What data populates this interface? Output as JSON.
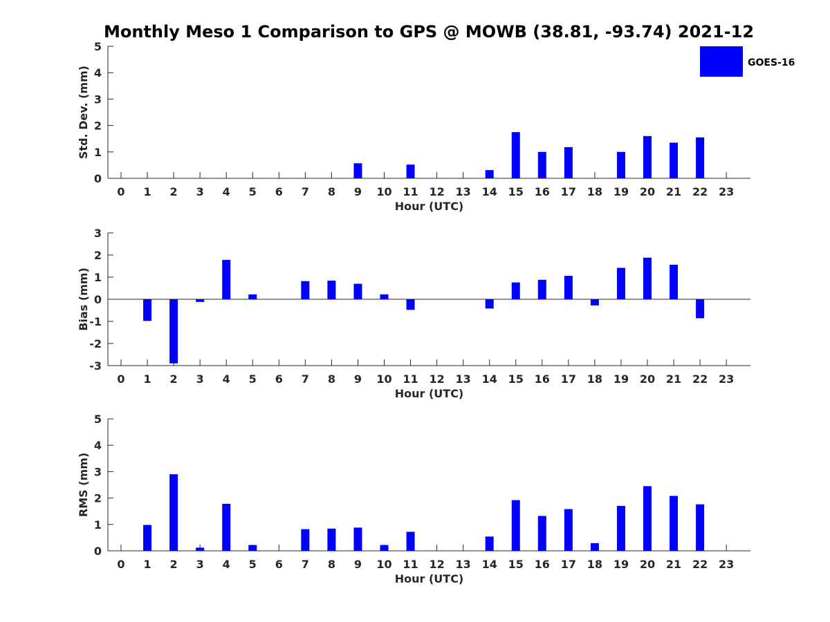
{
  "title": "Monthly Meso 1 Comparison to GPS @ MOWB (38.81, -93.74) 2021-12",
  "legend": {
    "label": "GOES-16",
    "color": "#0000ff"
  },
  "chart_data": [
    {
      "type": "bar",
      "xlabel": "Hour (UTC)",
      "ylabel": "Std. Dev. (mm)",
      "ylim": [
        0,
        5
      ],
      "yticks": [
        "0",
        "1",
        "2",
        "3",
        "4",
        "5"
      ],
      "categories": [
        "0",
        "1",
        "2",
        "3",
        "4",
        "5",
        "6",
        "7",
        "8",
        "9",
        "10",
        "11",
        "12",
        "13",
        "14",
        "15",
        "16",
        "17",
        "18",
        "19",
        "20",
        "21",
        "22",
        "23"
      ],
      "series": [
        {
          "name": "GOES-16",
          "values": [
            0,
            0,
            0,
            0,
            0,
            0,
            0,
            0,
            0,
            0.57,
            0,
            0.52,
            0,
            0,
            0.31,
            1.75,
            1.0,
            1.18,
            0,
            1.0,
            1.6,
            1.35,
            1.55,
            0
          ]
        }
      ]
    },
    {
      "type": "bar",
      "xlabel": "Hour (UTC)",
      "ylabel": "Bias (mm)",
      "ylim": [
        -3,
        3
      ],
      "yticks": [
        "-3",
        "-2",
        "-1",
        "0",
        "1",
        "2",
        "3"
      ],
      "categories": [
        "0",
        "1",
        "2",
        "3",
        "4",
        "5",
        "6",
        "7",
        "8",
        "9",
        "10",
        "11",
        "12",
        "13",
        "14",
        "15",
        "16",
        "17",
        "18",
        "19",
        "20",
        "21",
        "22",
        "23"
      ],
      "series": [
        {
          "name": "GOES-16",
          "values": [
            0,
            -0.98,
            -2.9,
            -0.12,
            1.78,
            0.22,
            0,
            0.82,
            0.84,
            0.7,
            0.22,
            -0.48,
            0,
            0,
            -0.42,
            0.76,
            0.88,
            1.06,
            -0.28,
            1.42,
            1.88,
            1.56,
            -0.86,
            0
          ]
        }
      ]
    },
    {
      "type": "bar",
      "xlabel": "Hour (UTC)",
      "ylabel": "RMS (mm)",
      "ylim": [
        0,
        5
      ],
      "yticks": [
        "0",
        "1",
        "2",
        "3",
        "4",
        "5"
      ],
      "categories": [
        "0",
        "1",
        "2",
        "3",
        "4",
        "5",
        "6",
        "7",
        "8",
        "9",
        "10",
        "11",
        "12",
        "13",
        "14",
        "15",
        "16",
        "17",
        "18",
        "19",
        "20",
        "21",
        "22",
        "23"
      ],
      "series": [
        {
          "name": "GOES-16",
          "values": [
            0,
            0.98,
            2.9,
            0.12,
            1.78,
            0.22,
            0,
            0.82,
            0.84,
            0.88,
            0.22,
            0.72,
            0,
            0,
            0.54,
            1.92,
            1.32,
            1.58,
            0.29,
            1.7,
            2.45,
            2.08,
            1.76,
            0
          ]
        }
      ]
    }
  ]
}
